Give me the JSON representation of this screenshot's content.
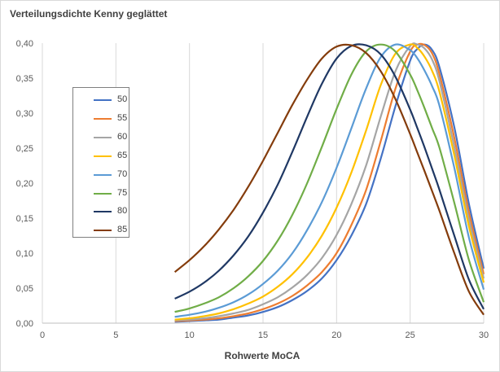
{
  "chart_data": {
    "type": "line",
    "title": "Verteilungsdichte Kenny geglättet",
    "xlabel": "Rohwerte MoCA",
    "ylabel": "",
    "xlim": [
      0,
      30
    ],
    "ylim": [
      0,
      0.4
    ],
    "x_ticks": [
      "0",
      "5",
      "10",
      "15",
      "20",
      "25",
      "30"
    ],
    "y_ticks": [
      "0,00",
      "0,05",
      "0,10",
      "0,15",
      "0,20",
      "0,25",
      "0,30",
      "0,35",
      "0,40"
    ],
    "grid": "vertical",
    "legend_placement": "left",
    "x": [
      9,
      10,
      11,
      12,
      13,
      14,
      15,
      16,
      17,
      18,
      19,
      20,
      21,
      22,
      23,
      24,
      25,
      25.5,
      26,
      26.5,
      27,
      28,
      29,
      30
    ],
    "series": [
      {
        "name": "50",
        "color": "#4472c4",
        "values": [
          0.002,
          0.003,
          0.004,
          0.005,
          0.008,
          0.011,
          0.016,
          0.023,
          0.033,
          0.046,
          0.064,
          0.09,
          0.125,
          0.17,
          0.235,
          0.31,
          0.375,
          0.392,
          0.398,
          0.39,
          0.365,
          0.28,
          0.17,
          0.078
        ]
      },
      {
        "name": "55",
        "color": "#ed7d31",
        "values": [
          0.003,
          0.004,
          0.005,
          0.007,
          0.01,
          0.014,
          0.02,
          0.028,
          0.039,
          0.054,
          0.073,
          0.1,
          0.14,
          0.19,
          0.26,
          0.335,
          0.388,
          0.398,
          0.397,
          0.385,
          0.355,
          0.265,
          0.158,
          0.07
        ]
      },
      {
        "name": "60",
        "color": "#a5a5a5",
        "values": [
          0.004,
          0.005,
          0.007,
          0.01,
          0.014,
          0.019,
          0.027,
          0.037,
          0.051,
          0.069,
          0.093,
          0.126,
          0.17,
          0.225,
          0.295,
          0.36,
          0.396,
          0.398,
          0.392,
          0.376,
          0.345,
          0.252,
          0.148,
          0.064
        ]
      },
      {
        "name": "65",
        "color": "#ffc000",
        "values": [
          0.005,
          0.007,
          0.01,
          0.014,
          0.02,
          0.028,
          0.038,
          0.052,
          0.07,
          0.094,
          0.125,
          0.165,
          0.215,
          0.275,
          0.34,
          0.385,
          0.398,
          0.393,
          0.38,
          0.36,
          0.33,
          0.24,
          0.138,
          0.058
        ]
      },
      {
        "name": "70",
        "color": "#5b9bd5",
        "values": [
          0.009,
          0.012,
          0.016,
          0.022,
          0.03,
          0.041,
          0.056,
          0.075,
          0.1,
          0.133,
          0.173,
          0.222,
          0.278,
          0.335,
          0.38,
          0.398,
          0.39,
          0.378,
          0.36,
          0.338,
          0.31,
          0.222,
          0.122,
          0.048
        ]
      },
      {
        "name": "75",
        "color": "#70ad47",
        "values": [
          0.016,
          0.021,
          0.028,
          0.037,
          0.05,
          0.067,
          0.089,
          0.118,
          0.155,
          0.2,
          0.252,
          0.306,
          0.355,
          0.388,
          0.398,
          0.388,
          0.355,
          0.332,
          0.306,
          0.278,
          0.25,
          0.172,
          0.09,
          0.03
        ]
      },
      {
        "name": "80",
        "color": "#1f3864",
        "values": [
          0.035,
          0.045,
          0.058,
          0.075,
          0.097,
          0.124,
          0.158,
          0.198,
          0.245,
          0.295,
          0.342,
          0.378,
          0.396,
          0.397,
          0.384,
          0.352,
          0.305,
          0.278,
          0.25,
          0.22,
          0.19,
          0.125,
          0.062,
          0.02
        ]
      },
      {
        "name": "85",
        "color": "#843c0c",
        "values": [
          0.073,
          0.09,
          0.11,
          0.134,
          0.162,
          0.195,
          0.232,
          0.272,
          0.312,
          0.348,
          0.378,
          0.395,
          0.397,
          0.386,
          0.36,
          0.32,
          0.27,
          0.243,
          0.216,
          0.188,
          0.16,
          0.1,
          0.045,
          0.012
        ]
      }
    ]
  }
}
